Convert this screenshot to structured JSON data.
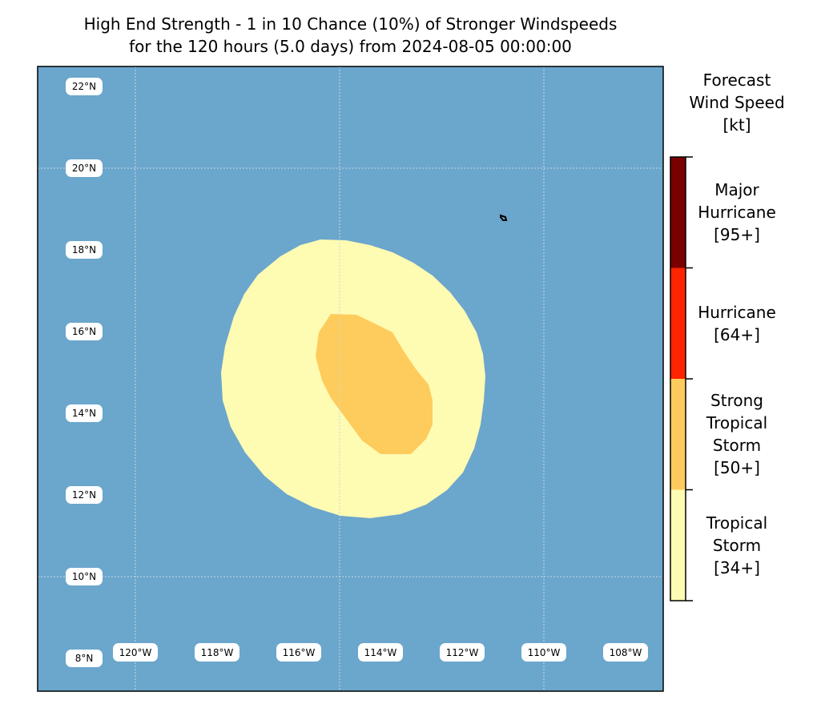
{
  "title": {
    "line1": "High End Strength - 1 in 10 Chance (10%) of Stronger Windspeeds",
    "line2": "for the 120 hours (5.0 days) from 2024-08-05 00:00:00"
  },
  "map": {
    "ocean_color": "#6ba6cc",
    "grid_color": "#c9d9e4",
    "lat_labels": [
      "22°N",
      "20°N",
      "18°N",
      "16°N",
      "14°N",
      "12°N",
      "10°N",
      "8°N"
    ],
    "lon_labels": [
      "120°W",
      "118°W",
      "116°W",
      "114°W",
      "112°W",
      "110°W",
      "108°W"
    ],
    "wind_zones": [
      {
        "category": "Tropical Storm [34+]",
        "color": "#fefbb3"
      },
      {
        "category": "Strong Tropical Storm [50+]",
        "color": "#fecc5c"
      }
    ],
    "features": [
      "small-island-outline"
    ]
  },
  "colorbar": {
    "title": [
      "Forecast",
      "Wind Speed",
      "[kt]"
    ],
    "categories": [
      {
        "lines": [
          "Major",
          "Hurricane",
          "[95+]"
        ],
        "color": "#7a0000"
      },
      {
        "lines": [
          "Hurricane",
          "[64+]"
        ],
        "color": "#fe2400"
      },
      {
        "lines": [
          "Strong",
          "Tropical",
          "Storm",
          "[50+]"
        ],
        "color": "#fecc5c"
      },
      {
        "lines": [
          "Tropical",
          "Storm",
          "[34+]"
        ],
        "color": "#fefbb3"
      }
    ]
  }
}
